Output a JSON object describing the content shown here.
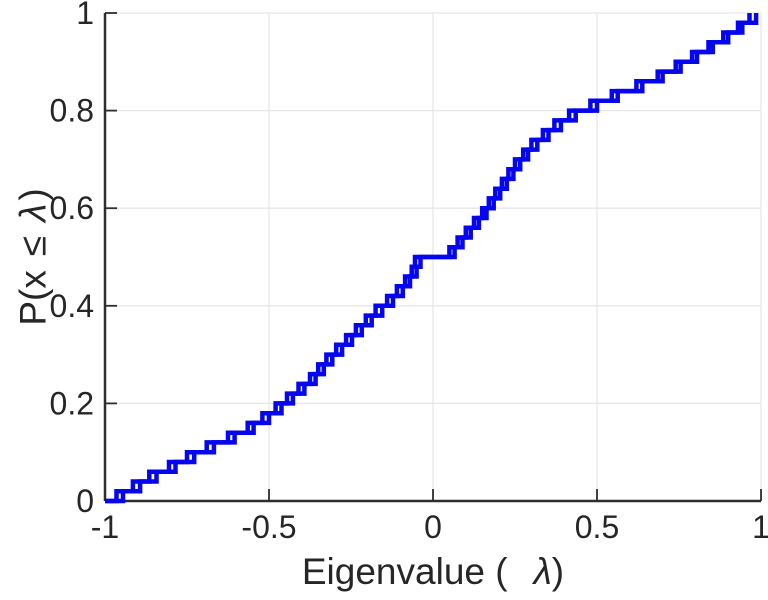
{
  "figure": {
    "background": "#ffffff",
    "text_color": "#262626",
    "axis_color": "#2e2e2e",
    "grid_color": "#e7e7e7"
  },
  "chart_data": {
    "type": "line",
    "subtype": "ecdf_step_staircase",
    "title": "",
    "xlabel": "Eigenvalue ( λ)",
    "ylabel": "P(x ≤ λ)",
    "xlabel_parts": {
      "pre": "Eigenvalue (",
      "sym": "λ",
      "post": ")"
    },
    "ylabel_parts": {
      "pre": "P(x",
      "leq": "≤",
      "sym": "λ",
      "post": ")"
    },
    "xlim": [
      -1,
      1
    ],
    "ylim": [
      0,
      1
    ],
    "x_tick_values": [
      -1,
      -0.5,
      0,
      0.5,
      1
    ],
    "x_tick_labels": [
      "-1",
      "-0.5",
      "0",
      "0.5",
      "1"
    ],
    "y_tick_values": [
      0,
      0.2,
      0.4,
      0.6,
      0.8,
      1
    ],
    "y_tick_labels": [
      "0",
      "0.2",
      "0.4",
      "0.6",
      "0.8",
      "1"
    ],
    "grid": true,
    "legend": null,
    "line_color": "#0505f0",
    "line_width": 4.5,
    "step_probability_increment": 0.02,
    "series": [
      {
        "name": "ecdf-series-1",
        "start_x": -1,
        "values": [
          -0.965,
          -0.915,
          -0.865,
          -0.805,
          -0.75,
          -0.69,
          -0.625,
          -0.565,
          -0.52,
          -0.48,
          -0.445,
          -0.41,
          -0.375,
          -0.35,
          -0.325,
          -0.295,
          -0.265,
          -0.235,
          -0.205,
          -0.175,
          -0.14,
          -0.11,
          -0.085,
          -0.065,
          -0.055,
          0.05,
          0.075,
          0.1,
          0.125,
          0.15,
          0.17,
          0.19,
          0.21,
          0.23,
          0.25,
          0.275,
          0.3,
          0.335,
          0.37,
          0.415,
          0.48,
          0.545,
          0.62,
          0.685,
          0.74,
          0.79,
          0.84,
          0.885,
          0.93,
          0.965
        ]
      },
      {
        "name": "ecdf-series-2",
        "start_x": -1,
        "values": [
          -0.945,
          -0.893,
          -0.843,
          -0.785,
          -0.728,
          -0.668,
          -0.605,
          -0.547,
          -0.5,
          -0.462,
          -0.427,
          -0.392,
          -0.358,
          -0.333,
          -0.307,
          -0.277,
          -0.247,
          -0.217,
          -0.187,
          -0.155,
          -0.122,
          -0.092,
          -0.07,
          -0.05,
          -0.038,
          0.066,
          0.09,
          0.115,
          0.14,
          0.163,
          0.185,
          0.205,
          0.225,
          0.245,
          0.266,
          0.29,
          0.318,
          0.352,
          0.39,
          0.435,
          0.5,
          0.563,
          0.638,
          0.7,
          0.755,
          0.805,
          0.853,
          0.9,
          0.943,
          0.985
        ]
      }
    ]
  }
}
